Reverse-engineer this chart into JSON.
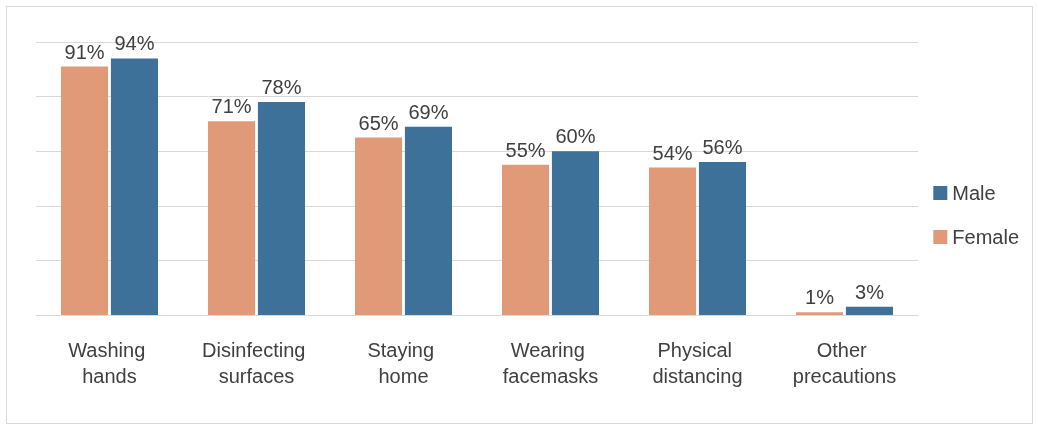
{
  "chart_data": {
    "type": "bar",
    "categories": [
      "Washing hands",
      "Disinfecting surfaces",
      "Staying home",
      "Wearing facemasks",
      "Physical distancing",
      "Other precautions"
    ],
    "series": [
      {
        "name": "Female",
        "color": "#e09a78",
        "values": [
          91,
          71,
          65,
          55,
          54,
          1
        ],
        "value_labels": [
          "91%",
          "71%",
          "65%",
          "55%",
          "54%",
          "1%"
        ]
      },
      {
        "name": "Male",
        "color": "#3e7199",
        "values": [
          94,
          78,
          69,
          60,
          56,
          3
        ],
        "value_labels": [
          "94%",
          "78%",
          "69%",
          "60%",
          "56%",
          "3%"
        ]
      }
    ],
    "ylim": [
      0,
      100
    ],
    "yticks": [
      {
        "value": 0,
        "label": null
      },
      {
        "value": 20,
        "label": null
      },
      {
        "value": 40,
        "label": null
      },
      {
        "value": 60,
        "label": null
      },
      {
        "value": 80,
        "label": null
      },
      {
        "value": 100,
        "label": null
      }
    ],
    "grid": "y",
    "legend": "right",
    "tick_labels": "x"
  }
}
